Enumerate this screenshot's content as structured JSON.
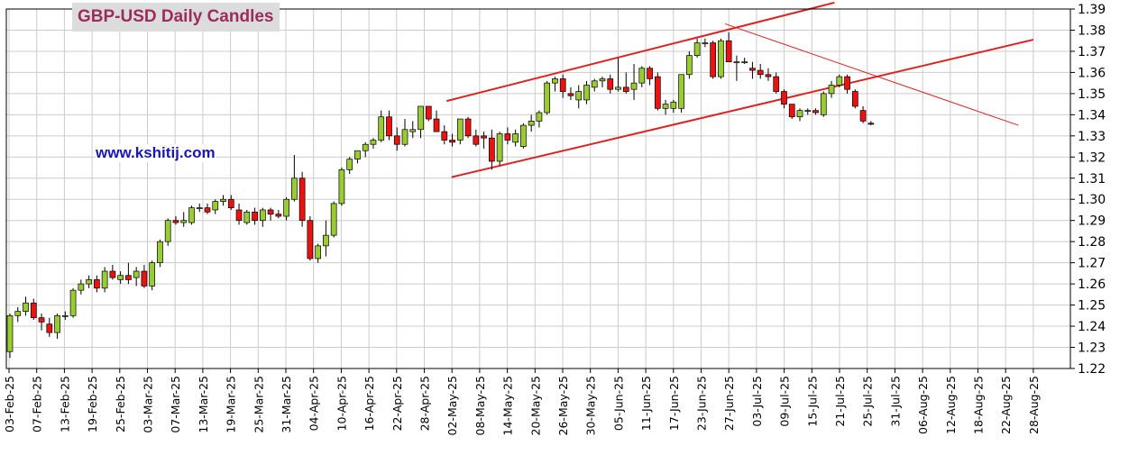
{
  "chart_data": {
    "type": "candlestick",
    "title": "GBP-USD Daily Candles",
    "watermark": "www.kshitij.com",
    "ylim": [
      1.22,
      1.39
    ],
    "y_ticks": [
      "1.22",
      "1.23",
      "1.24",
      "1.25",
      "1.26",
      "1.27",
      "1.28",
      "1.29",
      "1.30",
      "1.31",
      "1.32",
      "1.33",
      "1.34",
      "1.35",
      "1.36",
      "1.37",
      "1.38",
      "1.39"
    ],
    "x_ticks": [
      "03-Feb-25",
      "07-Feb-25",
      "13-Feb-25",
      "19-Feb-25",
      "25-Feb-25",
      "03-Mar-25",
      "07-Mar-25",
      "13-Mar-25",
      "19-Mar-25",
      "25-Mar-25",
      "31-Mar-25",
      "04-Apr-25",
      "10-Apr-25",
      "16-Apr-25",
      "22-Apr-25",
      "28-Apr-25",
      "02-May-25",
      "08-May-25",
      "14-May-25",
      "20-May-25",
      "26-May-25",
      "30-May-25",
      "05-Jun-25",
      "11-Jun-25",
      "17-Jun-25",
      "23-Jun-25",
      "27-Jun-25",
      "03-Jul-25",
      "09-Jul-25",
      "15-Jul-25",
      "21-Jul-25",
      "25-Jul-25",
      "31-Jul-25",
      "06-Aug-25",
      "12-Aug-25",
      "18-Aug-25",
      "22-Aug-25",
      "28-Aug-25"
    ],
    "grid": true,
    "colors": {
      "up": "#99cc33",
      "down": "#ee1111",
      "wick": "#000000",
      "trendline": "#dd2222",
      "grid": "#cccccc",
      "title_bg": "#dcdcdc",
      "title_text": "#9b2c5c",
      "watermark": "#1a16b8"
    },
    "candles": [
      [
        1.228,
        1.246,
        1.225,
        1.245
      ],
      [
        1.245,
        1.249,
        1.242,
        1.247
      ],
      [
        1.247,
        1.254,
        1.245,
        1.251
      ],
      [
        1.251,
        1.253,
        1.243,
        1.244
      ],
      [
        1.244,
        1.246,
        1.238,
        1.242
      ],
      [
        1.241,
        1.244,
        1.235,
        1.237
      ],
      [
        1.237,
        1.246,
        1.234,
        1.245
      ],
      [
        1.245,
        1.247,
        1.243,
        1.245
      ],
      [
        1.245,
        1.258,
        1.244,
        1.257
      ],
      [
        1.257,
        1.262,
        1.255,
        1.26
      ],
      [
        1.26,
        1.264,
        1.258,
        1.262
      ],
      [
        1.262,
        1.264,
        1.256,
        1.258
      ],
      [
        1.258,
        1.268,
        1.256,
        1.266
      ],
      [
        1.266,
        1.269,
        1.262,
        1.263
      ],
      [
        1.262,
        1.266,
        1.26,
        1.264
      ],
      [
        1.264,
        1.27,
        1.26,
        1.262
      ],
      [
        1.263,
        1.268,
        1.259,
        1.266
      ],
      [
        1.266,
        1.269,
        1.258,
        1.259
      ],
      [
        1.259,
        1.271,
        1.257,
        1.27
      ],
      [
        1.27,
        1.281,
        1.268,
        1.28
      ],
      [
        1.28,
        1.291,
        1.278,
        1.29
      ],
      [
        1.29,
        1.292,
        1.288,
        1.289
      ],
      [
        1.289,
        1.294,
        1.287,
        1.29
      ],
      [
        1.289,
        1.297,
        1.288,
        1.296
      ],
      [
        1.296,
        1.298,
        1.294,
        1.296
      ],
      [
        1.296,
        1.298,
        1.293,
        1.294
      ],
      [
        1.295,
        1.3,
        1.293,
        1.299
      ],
      [
        1.299,
        1.302,
        1.297,
        1.3
      ],
      [
        1.3,
        1.302,
        1.295,
        1.296
      ],
      [
        1.295,
        1.298,
        1.288,
        1.29
      ],
      [
        1.289,
        1.295,
        1.288,
        1.294
      ],
      [
        1.294,
        1.296,
        1.288,
        1.29
      ],
      [
        1.29,
        1.296,
        1.287,
        1.295
      ],
      [
        1.295,
        1.296,
        1.29,
        1.293
      ],
      [
        1.293,
        1.295,
        1.291,
        1.292
      ],
      [
        1.292,
        1.301,
        1.29,
        1.3
      ],
      [
        1.3,
        1.321,
        1.299,
        1.31
      ],
      [
        1.31,
        1.313,
        1.287,
        1.29
      ],
      [
        1.29,
        1.292,
        1.271,
        1.272
      ],
      [
        1.272,
        1.279,
        1.27,
        1.278
      ],
      [
        1.278,
        1.29,
        1.273,
        1.283
      ],
      [
        1.283,
        1.299,
        1.282,
        1.298
      ],
      [
        1.298,
        1.315,
        1.297,
        1.314
      ],
      [
        1.314,
        1.32,
        1.312,
        1.319
      ],
      [
        1.319,
        1.323,
        1.317,
        1.323
      ],
      [
        1.323,
        1.327,
        1.32,
        1.326
      ],
      [
        1.326,
        1.329,
        1.324,
        1.328
      ],
      [
        1.328,
        1.342,
        1.327,
        1.339
      ],
      [
        1.339,
        1.342,
        1.328,
        1.33
      ],
      [
        1.33,
        1.334,
        1.323,
        1.326
      ],
      [
        1.326,
        1.338,
        1.325,
        1.333
      ],
      [
        1.332,
        1.337,
        1.329,
        1.333
      ],
      [
        1.333,
        1.344,
        1.329,
        1.344
      ],
      [
        1.344,
        1.344,
        1.337,
        1.338
      ],
      [
        1.338,
        1.342,
        1.332,
        1.332
      ],
      [
        1.332,
        1.335,
        1.326,
        1.328
      ],
      [
        1.328,
        1.331,
        1.325,
        1.327
      ],
      [
        1.328,
        1.338,
        1.326,
        1.338
      ],
      [
        1.338,
        1.339,
        1.329,
        1.33
      ],
      [
        1.33,
        1.333,
        1.325,
        1.326
      ],
      [
        1.33,
        1.332,
        1.324,
        1.329
      ],
      [
        1.329,
        1.333,
        1.314,
        1.318
      ],
      [
        1.318,
        1.332,
        1.316,
        1.331
      ],
      [
        1.331,
        1.334,
        1.326,
        1.328
      ],
      [
        1.327,
        1.333,
        1.325,
        1.331
      ],
      [
        1.325,
        1.336,
        1.324,
        1.335
      ],
      [
        1.335,
        1.34,
        1.332,
        1.337
      ],
      [
        1.337,
        1.342,
        1.334,
        1.341
      ],
      [
        1.341,
        1.356,
        1.34,
        1.355
      ],
      [
        1.355,
        1.358,
        1.351,
        1.357
      ],
      [
        1.357,
        1.359,
        1.348,
        1.351
      ],
      [
        1.35,
        1.353,
        1.347,
        1.349
      ],
      [
        1.347,
        1.354,
        1.343,
        1.351
      ],
      [
        1.347,
        1.356,
        1.345,
        1.354
      ],
      [
        1.353,
        1.357,
        1.351,
        1.356
      ],
      [
        1.356,
        1.358,
        1.353,
        1.357
      ],
      [
        1.357,
        1.359,
        1.35,
        1.352
      ],
      [
        1.352,
        1.367,
        1.351,
        1.353
      ],
      [
        1.353,
        1.36,
        1.35,
        1.351
      ],
      [
        1.352,
        1.364,
        1.347,
        1.355
      ],
      [
        1.355,
        1.363,
        1.353,
        1.362
      ],
      [
        1.362,
        1.363,
        1.354,
        1.357
      ],
      [
        1.358,
        1.36,
        1.342,
        1.343
      ],
      [
        1.343,
        1.347,
        1.34,
        1.345
      ],
      [
        1.343,
        1.347,
        1.341,
        1.346
      ],
      [
        1.343,
        1.359,
        1.341,
        1.359
      ],
      [
        1.359,
        1.37,
        1.357,
        1.368
      ],
      [
        1.368,
        1.376,
        1.367,
        1.374
      ],
      [
        1.374,
        1.376,
        1.372,
        1.374
      ],
      [
        1.374,
        1.375,
        1.357,
        1.358
      ],
      [
        1.358,
        1.376,
        1.357,
        1.375
      ],
      [
        1.375,
        1.379,
        1.365,
        1.365
      ],
      [
        1.365,
        1.368,
        1.356,
        1.365
      ],
      [
        1.365,
        1.367,
        1.364,
        1.365
      ],
      [
        1.362,
        1.365,
        1.357,
        1.361
      ],
      [
        1.361,
        1.364,
        1.357,
        1.359
      ],
      [
        1.359,
        1.362,
        1.356,
        1.358
      ],
      [
        1.358,
        1.36,
        1.35,
        1.351
      ],
      [
        1.351,
        1.352,
        1.343,
        1.345
      ],
      [
        1.345,
        1.345,
        1.338,
        1.339
      ],
      [
        1.339,
        1.343,
        1.337,
        1.342
      ],
      [
        1.342,
        1.343,
        1.34,
        1.342
      ],
      [
        1.342,
        1.343,
        1.34,
        1.341
      ],
      [
        1.34,
        1.351,
        1.339,
        1.35
      ],
      [
        1.35,
        1.356,
        1.348,
        1.354
      ],
      [
        1.354,
        1.359,
        1.353,
        1.358
      ],
      [
        1.358,
        1.359,
        1.35,
        1.352
      ],
      [
        1.351,
        1.352,
        1.343,
        1.344
      ],
      [
        1.342,
        1.344,
        1.336,
        1.337
      ],
      [
        1.336,
        1.337,
        1.335,
        1.3355
      ]
    ],
    "trendlines": [
      [
        [
          "02-May-25",
          1.3465
        ],
        [
          "19-Jul-25",
          1.393
        ]
      ],
      [
        [
          "03-May-25",
          1.3105
        ],
        [
          "28-Aug-25",
          1.3755
        ]
      ],
      [
        [
          "27-Jun-25",
          1.383
        ],
        [
          "25-Aug-25",
          1.335
        ]
      ]
    ]
  }
}
